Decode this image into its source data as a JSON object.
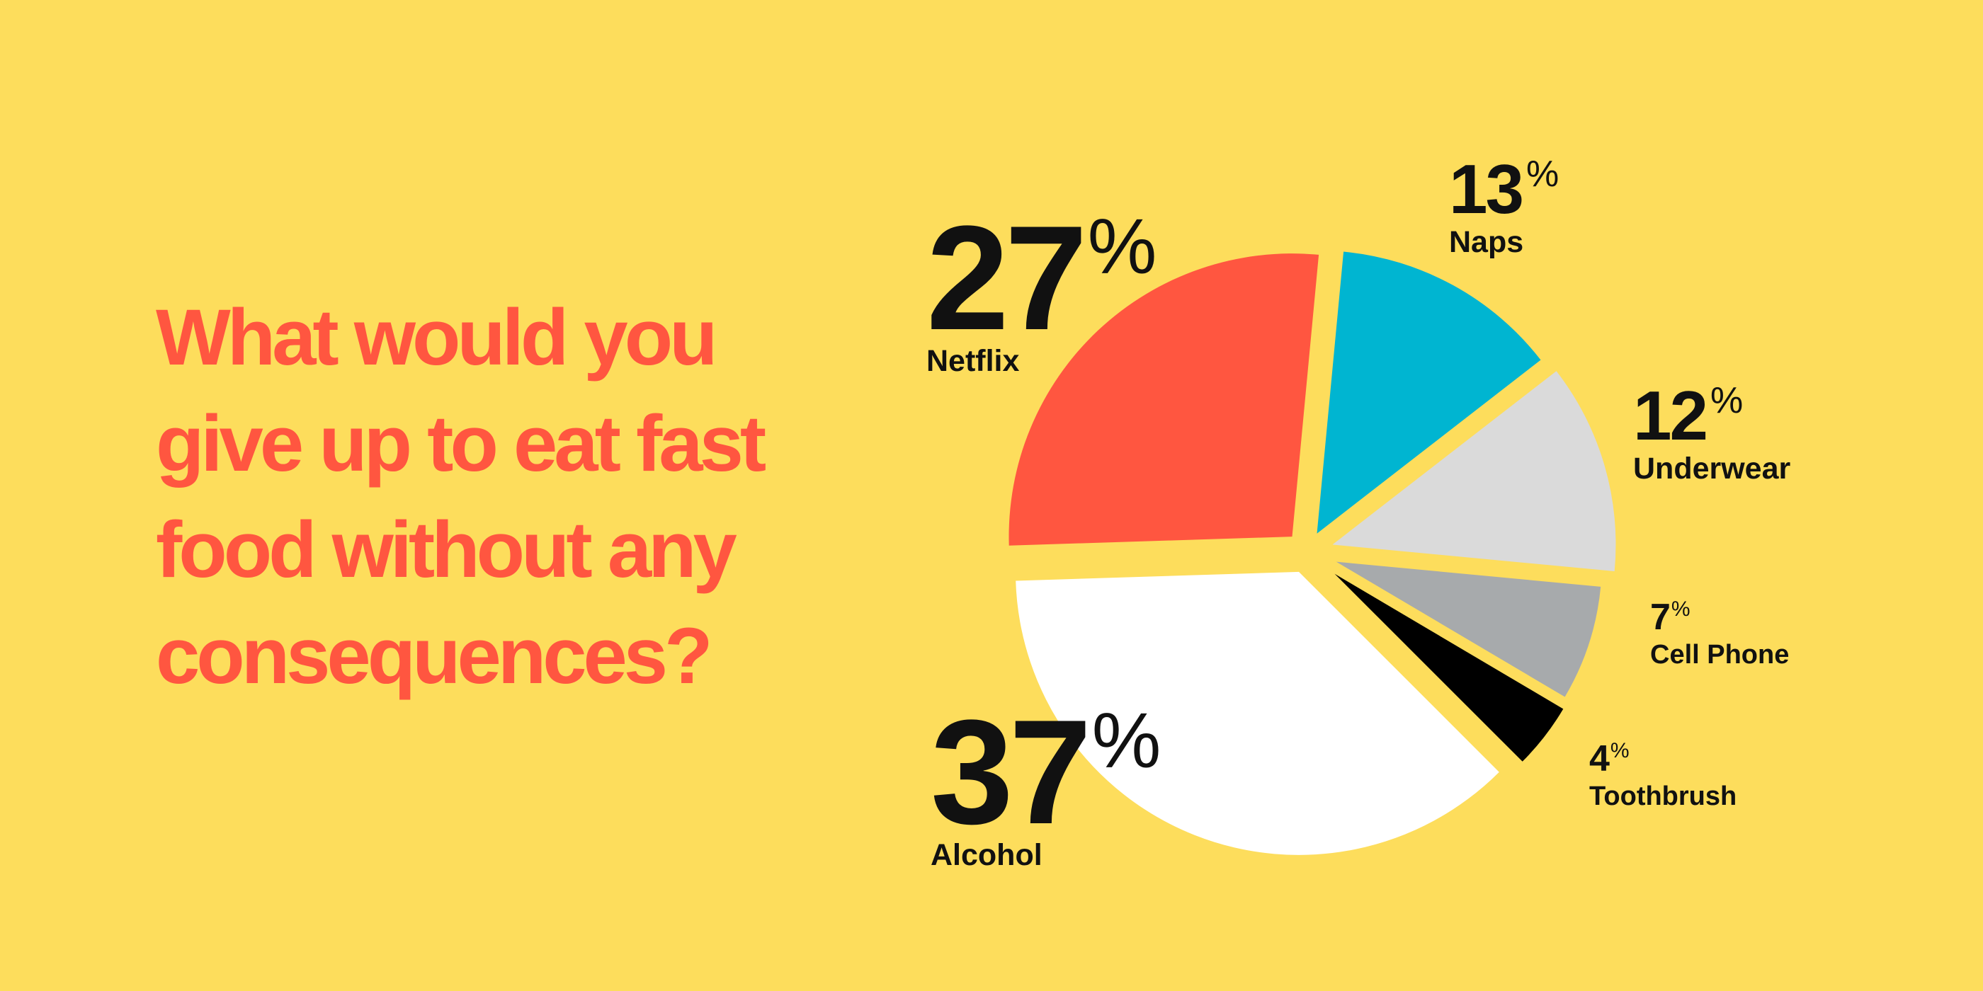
{
  "title": "What would you give up to eat fast food without any consequences?",
  "chart_data": {
    "type": "pie",
    "title": "What would you give up to eat fast food without any consequences?",
    "unit": "%",
    "slices": [
      {
        "label": "Alcohol",
        "value": 37,
        "color": "#FFFFFF"
      },
      {
        "label": "Netflix",
        "value": 27,
        "color": "#FF5640"
      },
      {
        "label": "Naps",
        "value": 13,
        "color": "#00B5D1"
      },
      {
        "label": "Underwear",
        "value": 12,
        "color": "#DADADA"
      },
      {
        "label": "Cell Phone",
        "value": 7,
        "color": "#A7AAAC"
      },
      {
        "label": "Toothbrush",
        "value": 4,
        "color": "#000000"
      }
    ],
    "legend": "none"
  },
  "labels": {
    "netflix": {
      "value": "27",
      "unit": "%",
      "name": "Netflix"
    },
    "naps": {
      "value": "13",
      "unit": "%",
      "name": "Naps"
    },
    "underwear": {
      "value": "12",
      "unit": "%",
      "name": "Underwear"
    },
    "cellphone": {
      "value": "7",
      "unit": "%",
      "name": "Cell Phone"
    },
    "toothbrush": {
      "value": "4",
      "unit": "%",
      "name": "Toothbrush"
    },
    "alcohol": {
      "value": "37",
      "unit": "%",
      "name": "Alcohol"
    }
  },
  "colors": {
    "background": "#FDDD5C",
    "title": "#FF5640",
    "label_text": "#111111"
  }
}
